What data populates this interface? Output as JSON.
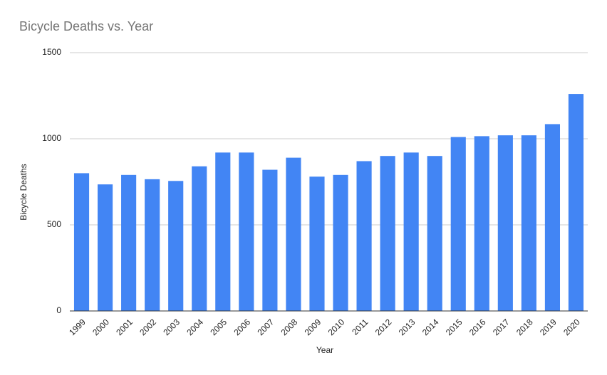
{
  "chart_data": {
    "type": "bar",
    "title": "Bicycle Deaths vs. Year",
    "x_label": "Year",
    "y_label": "Bicycle Deaths",
    "categories": [
      "1999",
      "2000",
      "2001",
      "2002",
      "2003",
      "2004",
      "2005",
      "2006",
      "2007",
      "2008",
      "2009",
      "2010",
      "2011",
      "2012",
      "2013",
      "2014",
      "2015",
      "2016",
      "2017",
      "2018",
      "2019",
      "2020"
    ],
    "values": [
      800,
      735,
      790,
      765,
      755,
      840,
      920,
      920,
      820,
      890,
      780,
      790,
      870,
      900,
      920,
      900,
      1010,
      1015,
      1020,
      1020,
      1085,
      1260
    ],
    "color": "#4285f4",
    "ylim": [
      0,
      1500
    ],
    "yticks": [
      0,
      500,
      1000,
      1500
    ],
    "grid": true
  }
}
